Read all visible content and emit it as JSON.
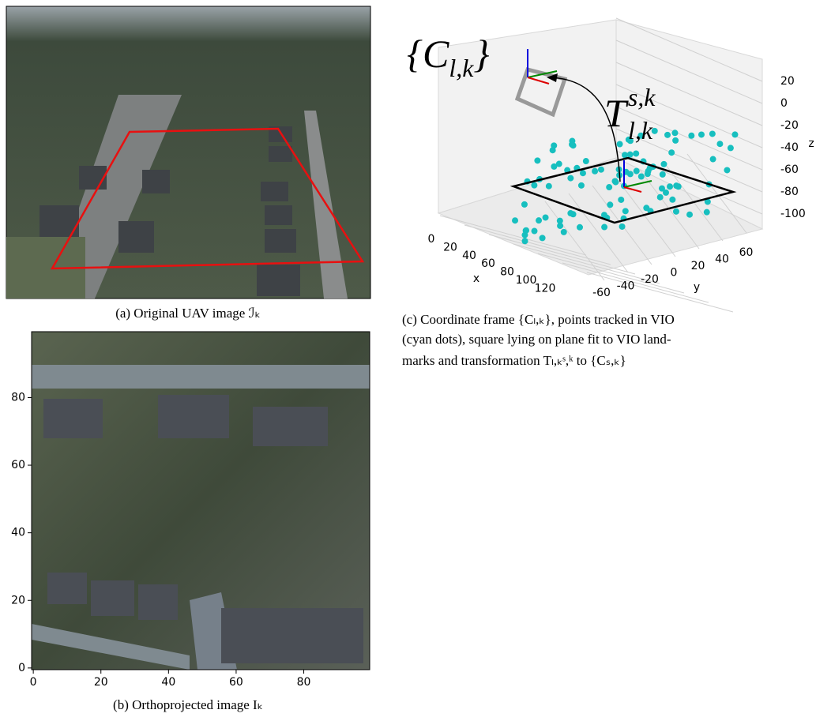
{
  "panel_a": {
    "caption": "(a) Original UAV image ℐₖ"
  },
  "panel_b": {
    "caption": "(b) Orthoprojected image Iₖ",
    "xlim": [
      -0.5,
      99.5
    ],
    "ylim": [
      -0.5,
      99.5
    ],
    "xticks": [
      0,
      20,
      40,
      60,
      80
    ],
    "yticks": [
      0,
      20,
      40,
      60,
      80
    ]
  },
  "panel_c": {
    "caption_lines": [
      "(c) Coordinate frame {Cₗ,ₖ}, points tracked in VIO",
      "(cyan dots), square lying on plane fit to VIO land-",
      "marks and transformation Tₗ,ₖˢ,ᵏ to {Cₛ,ₖ}"
    ],
    "frame_label": {
      "base": "{C",
      "sub": "l,k",
      "close": "}"
    },
    "transform_label": {
      "base": "T",
      "sup": "s,k",
      "sub": "l,k"
    },
    "x_label": "x",
    "y_label": "y",
    "z_label": "z",
    "xticks": [
      0,
      20,
      40,
      60,
      80,
      100,
      120
    ],
    "yticks": [
      -60,
      -40,
      -20,
      0,
      20,
      40,
      60
    ],
    "zticks": [
      20,
      0,
      -20,
      -40,
      -60,
      -80,
      -100
    ]
  }
}
